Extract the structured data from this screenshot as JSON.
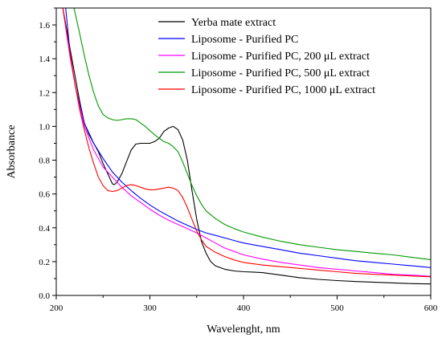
{
  "chart_data": {
    "type": "line",
    "title": "",
    "xlabel": "Wavelenght, nm",
    "ylabel": "Absorbance",
    "xlim": [
      200,
      600
    ],
    "ylim": [
      0,
      1.7
    ],
    "x_ticks": [
      200,
      300,
      400,
      500,
      600
    ],
    "x_tick_labels": [
      "200",
      "300",
      "400",
      "500",
      "600"
    ],
    "y_ticks": [
      0.0,
      0.2,
      0.4,
      0.6,
      0.8,
      1.0,
      1.2,
      1.4,
      1.6
    ],
    "y_tick_labels": [
      "0.0",
      "0.2",
      "0.4",
      "0.6",
      "0.8",
      "1.0",
      "1.2",
      "1.4",
      "1.6"
    ],
    "grid": false,
    "legend_position": "top-right",
    "series": [
      {
        "name": "Yerba mate extract",
        "color": "#000000",
        "points": [
          [
            207,
            1.7
          ],
          [
            215,
            1.45
          ],
          [
            220,
            1.3
          ],
          [
            225,
            1.15
          ],
          [
            230,
            1.02
          ],
          [
            235,
            0.95
          ],
          [
            240,
            0.9
          ],
          [
            245,
            0.85
          ],
          [
            250,
            0.78
          ],
          [
            255,
            0.72
          ],
          [
            260,
            0.66
          ],
          [
            262,
            0.655
          ],
          [
            265,
            0.67
          ],
          [
            270,
            0.72
          ],
          [
            275,
            0.79
          ],
          [
            280,
            0.86
          ],
          [
            285,
            0.895
          ],
          [
            290,
            0.9
          ],
          [
            295,
            0.9
          ],
          [
            300,
            0.9
          ],
          [
            305,
            0.91
          ],
          [
            310,
            0.93
          ],
          [
            315,
            0.97
          ],
          [
            320,
            0.99
          ],
          [
            325,
            1.0
          ],
          [
            330,
            0.98
          ],
          [
            335,
            0.92
          ],
          [
            340,
            0.8
          ],
          [
            345,
            0.62
          ],
          [
            350,
            0.45
          ],
          [
            355,
            0.32
          ],
          [
            360,
            0.25
          ],
          [
            365,
            0.2
          ],
          [
            370,
            0.175
          ],
          [
            380,
            0.155
          ],
          [
            390,
            0.145
          ],
          [
            400,
            0.14
          ],
          [
            410,
            0.138
          ],
          [
            420,
            0.135
          ],
          [
            440,
            0.12
          ],
          [
            460,
            0.105
          ],
          [
            480,
            0.095
          ],
          [
            500,
            0.088
          ],
          [
            520,
            0.082
          ],
          [
            540,
            0.078
          ],
          [
            560,
            0.074
          ],
          [
            580,
            0.07
          ],
          [
            600,
            0.068
          ]
        ]
      },
      {
        "name": "Liposome - Purified PC",
        "color": "#0000ff",
        "points": [
          [
            210,
            1.7
          ],
          [
            215,
            1.42
          ],
          [
            220,
            1.25
          ],
          [
            225,
            1.13
          ],
          [
            230,
            1.02
          ],
          [
            240,
            0.9
          ],
          [
            250,
            0.81
          ],
          [
            260,
            0.73
          ],
          [
            270,
            0.67
          ],
          [
            280,
            0.62
          ],
          [
            290,
            0.575
          ],
          [
            300,
            0.535
          ],
          [
            310,
            0.5
          ],
          [
            320,
            0.47
          ],
          [
            330,
            0.44
          ],
          [
            340,
            0.415
          ],
          [
            350,
            0.39
          ],
          [
            360,
            0.37
          ],
          [
            370,
            0.355
          ],
          [
            380,
            0.34
          ],
          [
            390,
            0.325
          ],
          [
            400,
            0.31
          ],
          [
            420,
            0.29
          ],
          [
            440,
            0.27
          ],
          [
            460,
            0.25
          ],
          [
            480,
            0.235
          ],
          [
            500,
            0.22
          ],
          [
            520,
            0.205
          ],
          [
            540,
            0.195
          ],
          [
            560,
            0.185
          ],
          [
            580,
            0.175
          ],
          [
            600,
            0.165
          ]
        ]
      },
      {
        "name": "Liposome - Purified PC, 200 μL extract",
        "color": "#ff00ff",
        "points": [
          [
            207,
            1.7
          ],
          [
            215,
            1.4
          ],
          [
            220,
            1.25
          ],
          [
            225,
            1.12
          ],
          [
            230,
            1.0
          ],
          [
            240,
            0.86
          ],
          [
            250,
            0.76
          ],
          [
            260,
            0.7
          ],
          [
            270,
            0.64
          ],
          [
            280,
            0.59
          ],
          [
            290,
            0.55
          ],
          [
            300,
            0.51
          ],
          [
            310,
            0.475
          ],
          [
            320,
            0.445
          ],
          [
            330,
            0.42
          ],
          [
            340,
            0.395
          ],
          [
            350,
            0.37
          ],
          [
            360,
            0.34
          ],
          [
            370,
            0.31
          ],
          [
            380,
            0.28
          ],
          [
            390,
            0.26
          ],
          [
            400,
            0.24
          ],
          [
            420,
            0.215
          ],
          [
            440,
            0.195
          ],
          [
            460,
            0.18
          ],
          [
            480,
            0.165
          ],
          [
            500,
            0.155
          ],
          [
            520,
            0.145
          ],
          [
            540,
            0.135
          ],
          [
            560,
            0.125
          ],
          [
            580,
            0.12
          ],
          [
            600,
            0.113
          ]
        ]
      },
      {
        "name": "Liposome - Purified PC, 500 μL extract",
        "color": "#009900",
        "points": [
          [
            219,
            1.7
          ],
          [
            225,
            1.55
          ],
          [
            230,
            1.42
          ],
          [
            235,
            1.3
          ],
          [
            240,
            1.2
          ],
          [
            245,
            1.12
          ],
          [
            250,
            1.07
          ],
          [
            255,
            1.05
          ],
          [
            260,
            1.04
          ],
          [
            265,
            1.035
          ],
          [
            270,
            1.04
          ],
          [
            275,
            1.045
          ],
          [
            280,
            1.045
          ],
          [
            285,
            1.04
          ],
          [
            290,
            1.02
          ],
          [
            295,
            1.0
          ],
          [
            300,
            0.975
          ],
          [
            305,
            0.95
          ],
          [
            310,
            0.93
          ],
          [
            315,
            0.91
          ],
          [
            320,
            0.9
          ],
          [
            325,
            0.88
          ],
          [
            330,
            0.85
          ],
          [
            335,
            0.79
          ],
          [
            340,
            0.72
          ],
          [
            345,
            0.65
          ],
          [
            350,
            0.59
          ],
          [
            355,
            0.54
          ],
          [
            360,
            0.5
          ],
          [
            370,
            0.455
          ],
          [
            380,
            0.42
          ],
          [
            390,
            0.395
          ],
          [
            400,
            0.375
          ],
          [
            420,
            0.345
          ],
          [
            440,
            0.32
          ],
          [
            460,
            0.3
          ],
          [
            480,
            0.285
          ],
          [
            500,
            0.27
          ],
          [
            520,
            0.26
          ],
          [
            540,
            0.25
          ],
          [
            560,
            0.24
          ],
          [
            580,
            0.225
          ],
          [
            600,
            0.212
          ]
        ]
      },
      {
        "name": "Liposome - Purified PC, 1000 μL extract",
        "color": "#ff0000",
        "points": [
          [
            207,
            1.7
          ],
          [
            215,
            1.42
          ],
          [
            220,
            1.25
          ],
          [
            225,
            1.1
          ],
          [
            230,
            0.98
          ],
          [
            235,
            0.87
          ],
          [
            240,
            0.78
          ],
          [
            245,
            0.7
          ],
          [
            250,
            0.65
          ],
          [
            255,
            0.62
          ],
          [
            260,
            0.615
          ],
          [
            265,
            0.62
          ],
          [
            270,
            0.635
          ],
          [
            275,
            0.65
          ],
          [
            280,
            0.655
          ],
          [
            285,
            0.65
          ],
          [
            290,
            0.64
          ],
          [
            295,
            0.63
          ],
          [
            300,
            0.625
          ],
          [
            305,
            0.625
          ],
          [
            310,
            0.63
          ],
          [
            315,
            0.635
          ],
          [
            320,
            0.64
          ],
          [
            325,
            0.635
          ],
          [
            330,
            0.62
          ],
          [
            335,
            0.58
          ],
          [
            340,
            0.52
          ],
          [
            345,
            0.45
          ],
          [
            350,
            0.38
          ],
          [
            355,
            0.33
          ],
          [
            360,
            0.29
          ],
          [
            370,
            0.255
          ],
          [
            380,
            0.23
          ],
          [
            390,
            0.21
          ],
          [
            400,
            0.195
          ],
          [
            420,
            0.18
          ],
          [
            440,
            0.17
          ],
          [
            460,
            0.16
          ],
          [
            480,
            0.15
          ],
          [
            500,
            0.14
          ],
          [
            520,
            0.13
          ],
          [
            540,
            0.125
          ],
          [
            560,
            0.12
          ],
          [
            580,
            0.115
          ],
          [
            600,
            0.11
          ]
        ]
      }
    ]
  }
}
